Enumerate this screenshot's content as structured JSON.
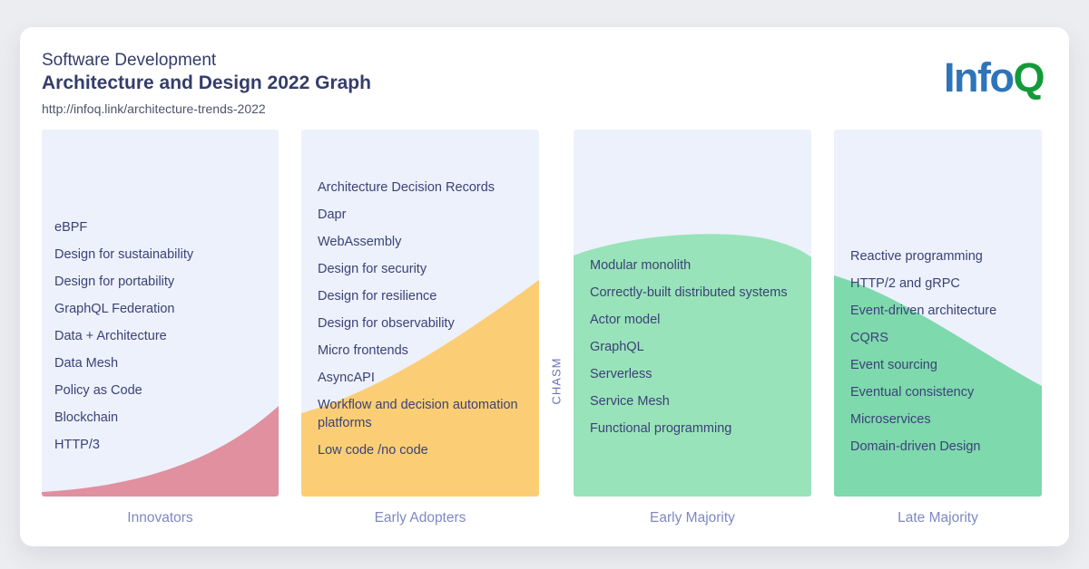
{
  "header": {
    "title_line1": "Software Development",
    "title_line2": "Architecture and Design 2022 Graph",
    "url": "http://infoq.link/architecture-trends-2022",
    "logo_info": "Info",
    "logo_q": "Q"
  },
  "chasm_label": "CHASM",
  "columns": [
    {
      "label": "Innovators",
      "color": "#e0909f",
      "items": [
        "eBPF",
        "Design for sustainability",
        "Design for portability",
        "GraphQL Federation",
        "Data + Architecture",
        "Data Mesh",
        "Policy as Code",
        "Blockchain",
        "HTTP/3"
      ]
    },
    {
      "label": "Early Adopters",
      "color": "#fbce76",
      "items": [
        "Architecture Decision Records",
        "Dapr",
        "WebAssembly",
        "Design for security",
        "Design for resilience",
        "Design for observability",
        "Micro frontends",
        "AsyncAPI",
        "Workflow and decision automation platforms",
        "Low code /no code"
      ]
    },
    {
      "label": "Early Majority",
      "color": "#99e3ba",
      "items": [
        "Modular monolith",
        "Correctly-built distributed systems",
        "Actor model",
        "GraphQL",
        "Serverless",
        "Service Mesh",
        "Functional programming"
      ]
    },
    {
      "label": "Late Majority",
      "color": "#7ed9ad",
      "items": [
        "Reactive programming",
        "HTTP/2 and gRPC",
        "Event-driven architecture",
        "CQRS",
        "Event sourcing",
        "Eventual consistency",
        "Microservices",
        "Domain-driven Design"
      ]
    }
  ],
  "colors": {
    "page_bg": "#ecedf0",
    "card_bg": "#ffffff",
    "panel_bg": "#edf1fb",
    "title_text": "#343d6b",
    "url_text": "#4d5368",
    "item_text": "#3b4277",
    "axis_label_text": "#7e88c4",
    "chasm_text": "#6b74b4",
    "logo_info_blue": "#2e74b9",
    "logo_q_green": "#129a39",
    "curve_innovators_pink": "#e0909f",
    "curve_early_adopters_orange": "#fbce76",
    "curve_early_majority_green": "#99e3ba",
    "curve_late_majority_teal": "#7ed9ad"
  }
}
